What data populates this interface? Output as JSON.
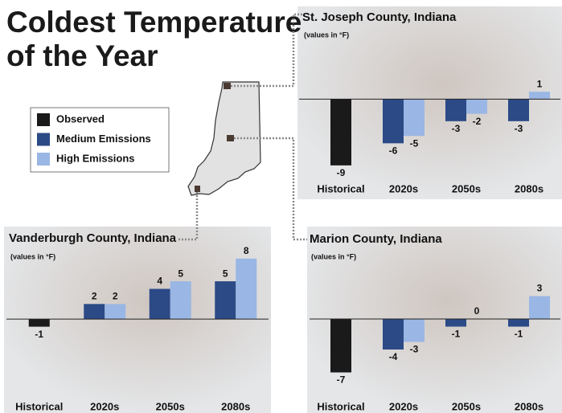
{
  "title": [
    "Coldest Temperature",
    "of the Year"
  ],
  "legend": [
    {
      "name": "Observed",
      "color": "#1a1a1a"
    },
    {
      "name": "Medium Emissions",
      "color": "#2b4a86"
    },
    {
      "name": "High Emissions",
      "color": "#9ab6e4"
    }
  ],
  "chart_data": [
    {
      "type": "bar",
      "title": "St. Joseph County, Indiana",
      "subtitle": "(values in °F)",
      "categories": [
        "Historical",
        "2020s",
        "2050s",
        "2080s"
      ],
      "series": [
        {
          "values": [
            -9,
            null,
            null,
            null
          ]
        },
        {
          "values": [
            null,
            -6,
            -3,
            -3
          ]
        },
        {
          "values": [
            null,
            -5,
            -2,
            1
          ]
        }
      ],
      "ylim": [
        -10,
        2
      ]
    },
    {
      "type": "bar",
      "title": "Vanderburgh County, Indiana",
      "subtitle": "(values in °F)",
      "categories": [
        "Historical",
        "2020s",
        "2050s",
        "2080s"
      ],
      "series": [
        {
          "values": [
            -1,
            null,
            null,
            null
          ]
        },
        {
          "values": [
            null,
            2,
            4,
            5
          ]
        },
        {
          "values": [
            null,
            2,
            5,
            8
          ]
        }
      ],
      "ylim": [
        -2,
        10
      ]
    },
    {
      "type": "bar",
      "title": "Marion County, Indiana",
      "subtitle": "(values in °F)",
      "categories": [
        "Historical",
        "2020s",
        "2050s",
        "2080s"
      ],
      "series": [
        {
          "values": [
            -7,
            null,
            null,
            null
          ]
        },
        {
          "values": [
            null,
            -4,
            -1,
            -1
          ]
        },
        {
          "values": [
            null,
            -3,
            0,
            3
          ]
        }
      ],
      "ylim": [
        -8,
        4
      ]
    }
  ]
}
